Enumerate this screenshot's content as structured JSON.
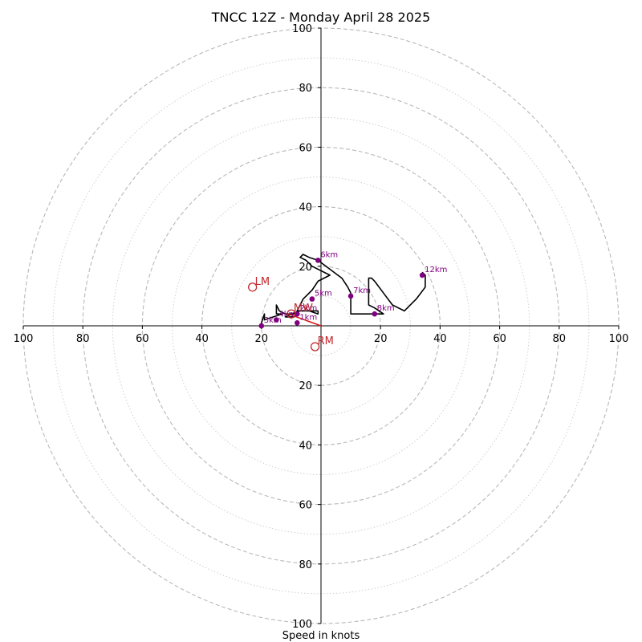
{
  "chart_data": {
    "type": "hodograph",
    "title": "TNCC 12Z - Monday April 28 2025",
    "xlabel": "Speed in knots",
    "ylabel": "",
    "xlim": [
      -100,
      100
    ],
    "ylim": [
      -100,
      100
    ],
    "units": "knots",
    "rings_major": [
      20,
      40,
      60,
      80,
      100
    ],
    "rings_minor": [
      10,
      30,
      50,
      70,
      90
    ],
    "x_tick_labels": [
      "100",
      "80",
      "60",
      "40",
      "20",
      "20",
      "40",
      "60",
      "80",
      "100"
    ],
    "y_tick_labels": [
      "100",
      "80",
      "60",
      "40",
      "20",
      "20",
      "40",
      "60",
      "80",
      "100"
    ],
    "x_tick_values": [
      -100,
      -80,
      -60,
      -40,
      -20,
      20,
      40,
      60,
      80,
      100
    ],
    "y_tick_values": [
      100,
      80,
      60,
      40,
      20,
      -20,
      -40,
      -60,
      -80,
      -100
    ],
    "trace": [
      [
        -20,
        0
      ],
      [
        -20,
        1
      ],
      [
        -19,
        4
      ],
      [
        -19,
        2
      ],
      [
        -16,
        3
      ],
      [
        -13,
        4
      ],
      [
        -15,
        4
      ],
      [
        -15,
        6
      ],
      [
        -15,
        7
      ],
      [
        -14,
        5
      ],
      [
        -12,
        4
      ],
      [
        -8,
        4
      ],
      [
        -8,
        5
      ],
      [
        -7,
        5
      ],
      [
        -4,
        5
      ],
      [
        -1,
        4
      ],
      [
        -1,
        5
      ],
      [
        -7,
        5
      ],
      [
        -10,
        4
      ],
      [
        -12,
        3
      ],
      [
        -9,
        3
      ],
      [
        -8,
        5
      ],
      [
        -6,
        9
      ],
      [
        -3,
        12
      ],
      [
        -1,
        15
      ],
      [
        3,
        17
      ],
      [
        -3,
        20
      ],
      [
        -5,
        22
      ],
      [
        -7,
        23
      ],
      [
        -6,
        24
      ],
      [
        -4,
        23
      ],
      [
        -1,
        22
      ],
      [
        7,
        16
      ],
      [
        9,
        13
      ],
      [
        10,
        11
      ],
      [
        10,
        7
      ],
      [
        10,
        4
      ],
      [
        14,
        4
      ],
      [
        18,
        4
      ],
      [
        21,
        4
      ],
      [
        18,
        6
      ],
      [
        16,
        7
      ],
      [
        16,
        11
      ],
      [
        16,
        16
      ],
      [
        17,
        16
      ],
      [
        18,
        15
      ],
      [
        21,
        11
      ],
      [
        24,
        7
      ],
      [
        28,
        5
      ],
      [
        32,
        9
      ],
      [
        35,
        13
      ],
      [
        35,
        17
      ],
      [
        34,
        18
      ]
    ],
    "height_markers": [
      {
        "label": "1km",
        "u": -8,
        "v": 1
      },
      {
        "label": "2km",
        "u": -8,
        "v": 4
      },
      {
        "label": "3km",
        "u": -20,
        "v": 0
      },
      {
        "label": "4km",
        "u": -15,
        "v": 2
      },
      {
        "label": "5km",
        "u": -3,
        "v": 9
      },
      {
        "label": "6km",
        "u": -1,
        "v": 22
      },
      {
        "label": "7km",
        "u": 10,
        "v": 10
      },
      {
        "label": "8km",
        "u": 18,
        "v": 4
      },
      {
        "label": "12km",
        "u": 34,
        "v": 17
      }
    ],
    "height_marker_color": "#800080",
    "trace_color": "#000000",
    "shear_vector": {
      "from": [
        -11,
        4
      ],
      "to": [
        0,
        0
      ],
      "color": "#d61f1f"
    },
    "storm_motion": [
      {
        "label": "LM",
        "u": -23,
        "v": 13
      },
      {
        "label": "MW",
        "u": -10,
        "v": 4
      },
      {
        "label": "RM",
        "u": -2,
        "v": -7
      }
    ],
    "storm_motion_color": "#c0282d",
    "grid": true,
    "legend": "none"
  }
}
